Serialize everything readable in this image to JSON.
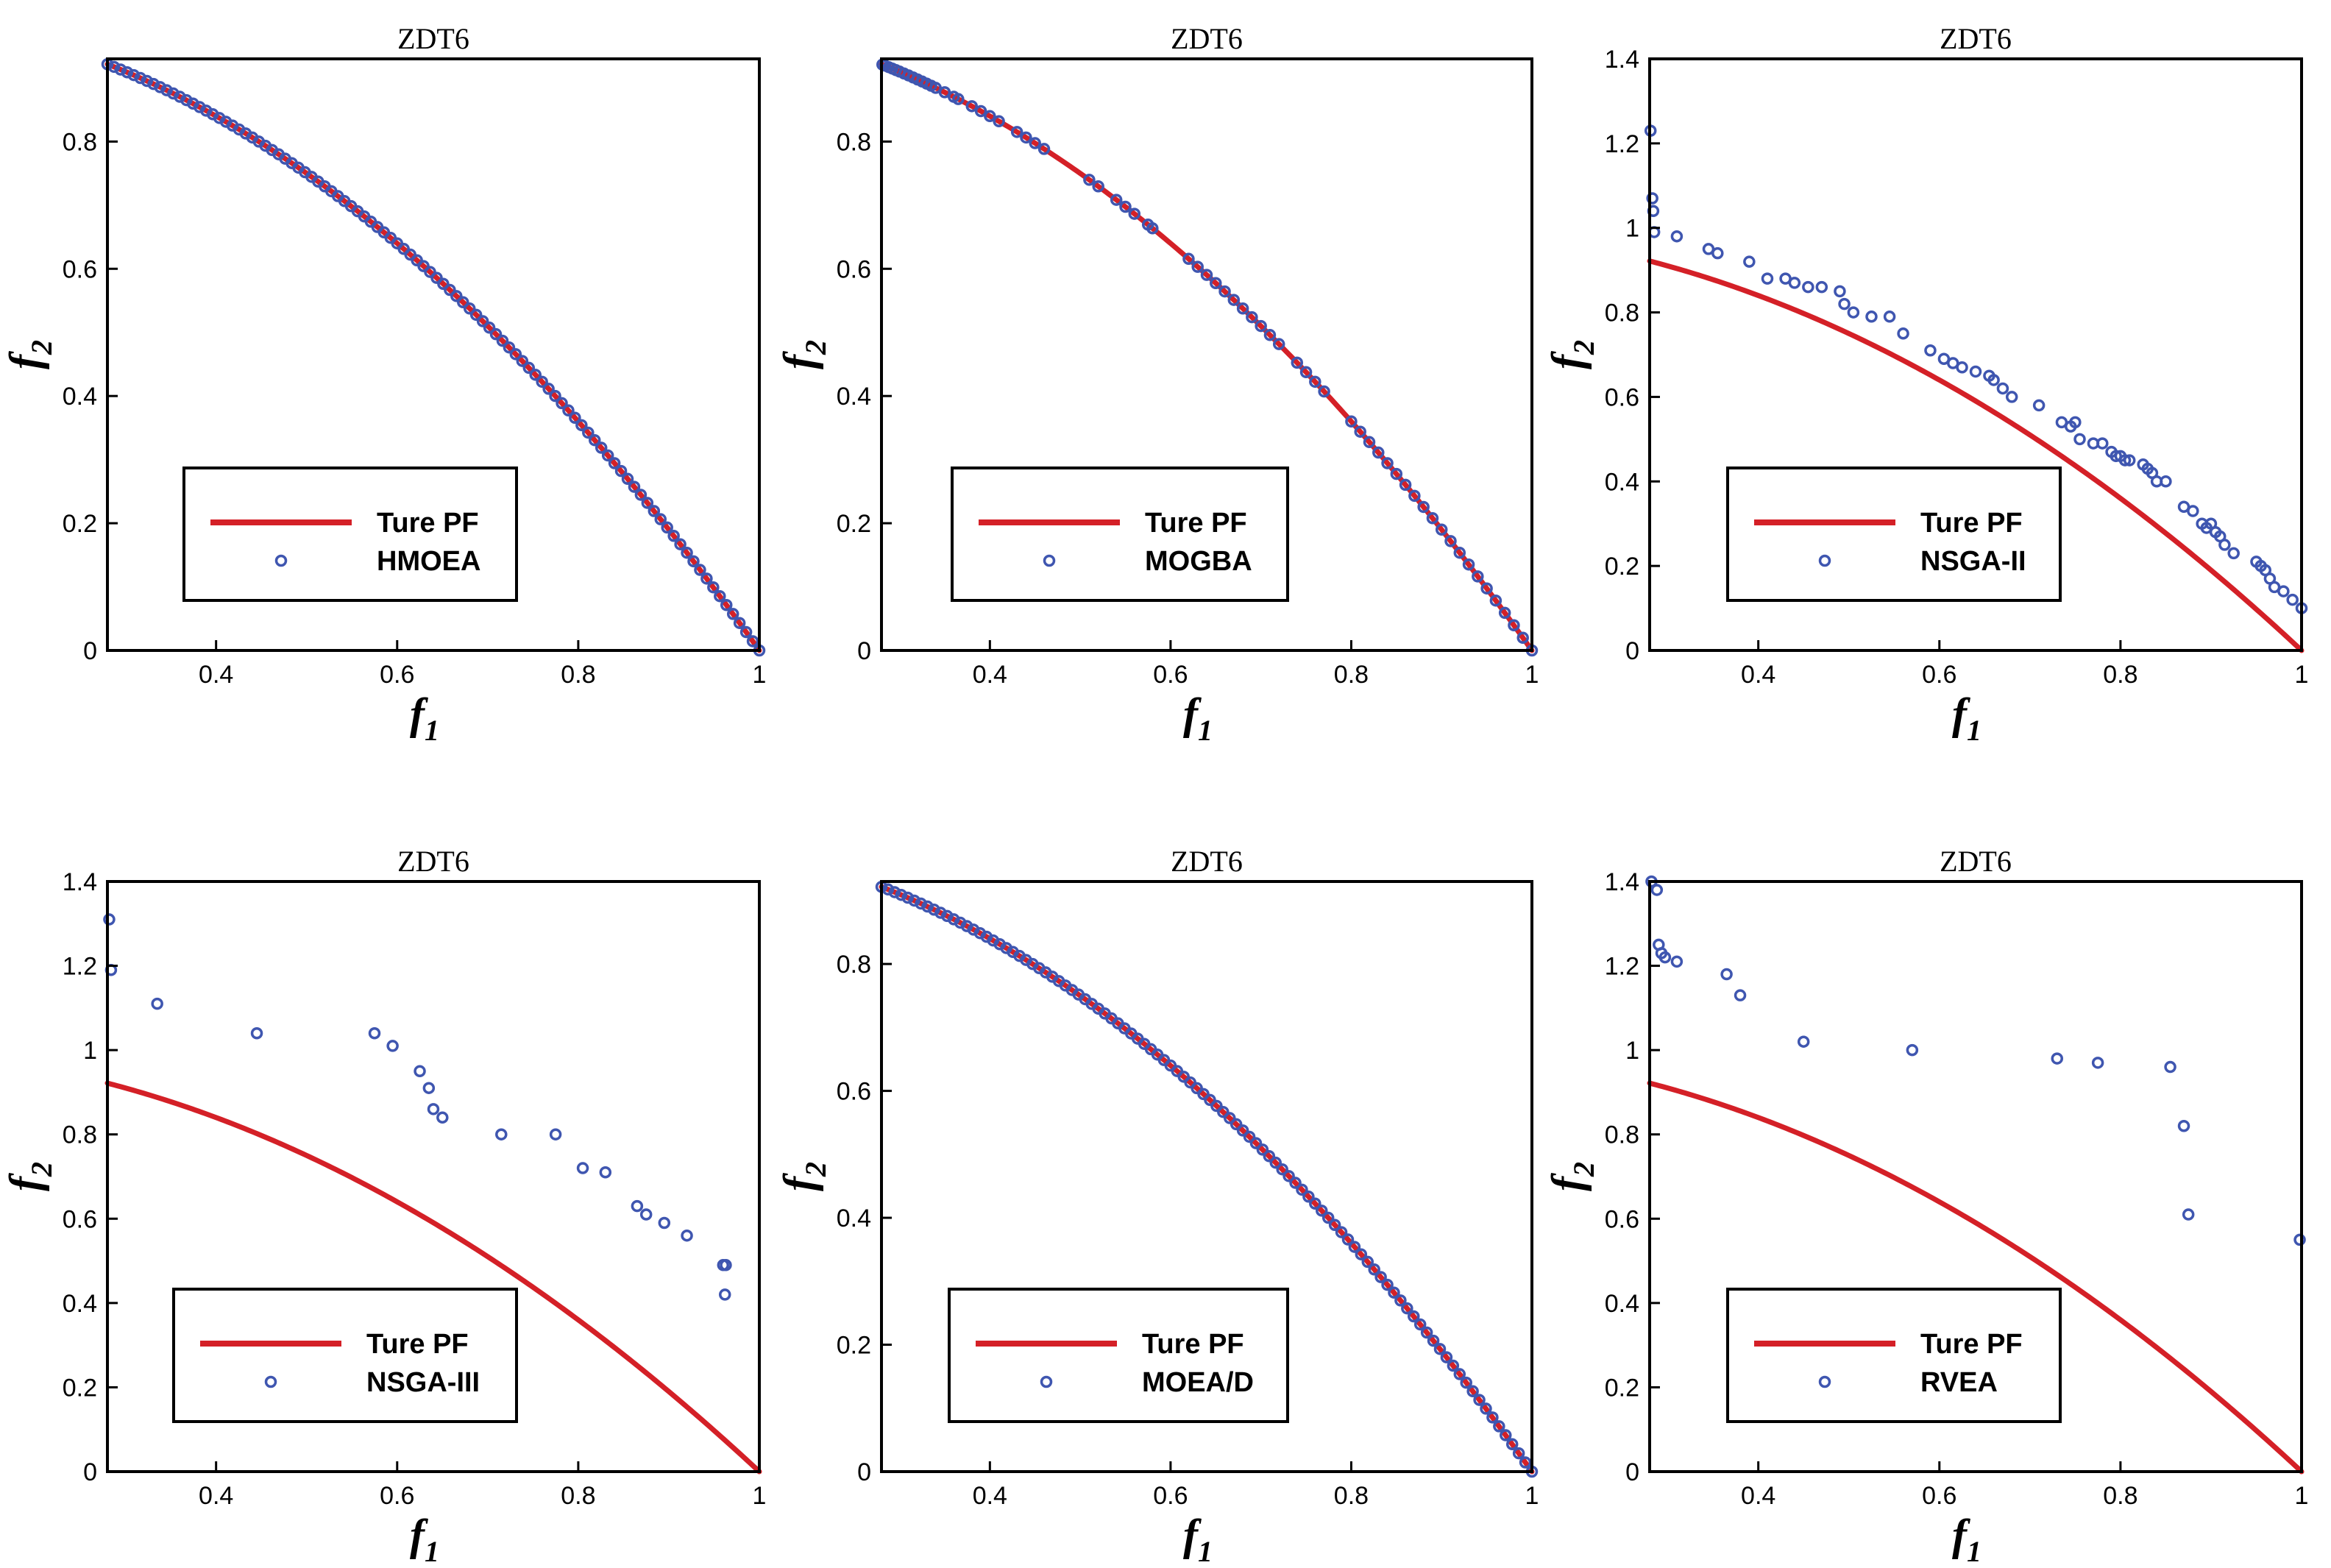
{
  "colors": {
    "true_pf": "#d42027",
    "points": "#3f56b0",
    "frame": "#000000"
  },
  "chart_data": [
    {
      "type": "line+scatter",
      "title": "ZDT6",
      "xlabel": "f",
      "xlabel_sub": "1",
      "ylabel": "f",
      "ylabel_sub": "2",
      "xlim": [
        0.28,
        1.0
      ],
      "ylim": [
        0,
        0.93
      ],
      "xticks": [
        0.4,
        0.6,
        0.8,
        1
      ],
      "xtick_labels": [
        "0.4",
        "0.6",
        "0.8",
        "1"
      ],
      "yticks": [
        0,
        0.2,
        0.4,
        0.6,
        0.8
      ],
      "ytick_labels": [
        "0",
        "0.2",
        "0.4",
        "0.6",
        "0.8"
      ],
      "legend": {
        "line_label": "Ture PF",
        "points_label": "HMOEA"
      },
      "points_on_pf": {
        "count": 100,
        "f1_min": 0.28,
        "f1_max": 1.0
      },
      "points": []
    },
    {
      "type": "line+scatter",
      "title": "ZDT6",
      "xlabel": "f",
      "xlabel_sub": "1",
      "ylabel": "f",
      "ylabel_sub": "2",
      "xlim": [
        0.28,
        1.0
      ],
      "ylim": [
        0,
        0.93
      ],
      "xticks": [
        0.4,
        0.6,
        0.8,
        1
      ],
      "xtick_labels": [
        "0.4",
        "0.6",
        "0.8",
        "1"
      ],
      "yticks": [
        0,
        0.2,
        0.4,
        0.6,
        0.8
      ],
      "ytick_labels": [
        "0",
        "0.2",
        "0.4",
        "0.6",
        "0.8"
      ],
      "legend": {
        "line_label": "Ture PF",
        "points_label": "MOGBA"
      },
      "points_on_pf_list": [
        0.281,
        0.284,
        0.288,
        0.292,
        0.296,
        0.3,
        0.305,
        0.31,
        0.315,
        0.32,
        0.325,
        0.33,
        0.335,
        0.34,
        0.35,
        0.36,
        0.365,
        0.38,
        0.39,
        0.4,
        0.41,
        0.43,
        0.44,
        0.45,
        0.46,
        0.51,
        0.52,
        0.54,
        0.55,
        0.56,
        0.575,
        0.58,
        0.62,
        0.63,
        0.64,
        0.65,
        0.66,
        0.67,
        0.68,
        0.69,
        0.7,
        0.71,
        0.72,
        0.74,
        0.75,
        0.76,
        0.77,
        0.8,
        0.81,
        0.82,
        0.83,
        0.84,
        0.85,
        0.86,
        0.87,
        0.88,
        0.89,
        0.9,
        0.91,
        0.92,
        0.93,
        0.94,
        0.95,
        0.96,
        0.97,
        0.98,
        0.99,
        1.0
      ],
      "points": []
    },
    {
      "type": "line+scatter",
      "title": "ZDT6",
      "xlabel": "f",
      "xlabel_sub": "1",
      "ylabel": "f",
      "ylabel_sub": "2",
      "xlim": [
        0.28,
        1.0
      ],
      "ylim": [
        0,
        1.4
      ],
      "xticks": [
        0.4,
        0.6,
        0.8,
        1
      ],
      "xtick_labels": [
        "0.4",
        "0.6",
        "0.8",
        "1"
      ],
      "yticks": [
        0,
        0.2,
        0.4,
        0.6,
        0.8,
        1,
        1.2,
        1.4
      ],
      "ytick_labels": [
        "0",
        "0.2",
        "0.4",
        "0.6",
        "0.8",
        "1",
        "1.2",
        "1.4"
      ],
      "legend": {
        "line_label": "Ture PF",
        "points_label": "NSGA-II"
      },
      "points": [
        [
          0.281,
          1.23
        ],
        [
          0.283,
          1.07
        ],
        [
          0.284,
          1.04
        ],
        [
          0.285,
          0.99
        ],
        [
          0.31,
          0.98
        ],
        [
          0.345,
          0.95
        ],
        [
          0.355,
          0.94
        ],
        [
          0.39,
          0.92
        ],
        [
          0.41,
          0.88
        ],
        [
          0.43,
          0.88
        ],
        [
          0.44,
          0.87
        ],
        [
          0.455,
          0.86
        ],
        [
          0.47,
          0.86
        ],
        [
          0.49,
          0.85
        ],
        [
          0.495,
          0.82
        ],
        [
          0.505,
          0.8
        ],
        [
          0.525,
          0.79
        ],
        [
          0.545,
          0.79
        ],
        [
          0.56,
          0.75
        ],
        [
          0.59,
          0.71
        ],
        [
          0.605,
          0.69
        ],
        [
          0.615,
          0.68
        ],
        [
          0.625,
          0.67
        ],
        [
          0.64,
          0.66
        ],
        [
          0.655,
          0.65
        ],
        [
          0.66,
          0.64
        ],
        [
          0.67,
          0.62
        ],
        [
          0.68,
          0.6
        ],
        [
          0.71,
          0.58
        ],
        [
          0.735,
          0.54
        ],
        [
          0.745,
          0.53
        ],
        [
          0.75,
          0.54
        ],
        [
          0.755,
          0.5
        ],
        [
          0.77,
          0.49
        ],
        [
          0.78,
          0.49
        ],
        [
          0.79,
          0.47
        ],
        [
          0.795,
          0.46
        ],
        [
          0.8,
          0.46
        ],
        [
          0.805,
          0.45
        ],
        [
          0.81,
          0.45
        ],
        [
          0.825,
          0.44
        ],
        [
          0.83,
          0.43
        ],
        [
          0.835,
          0.42
        ],
        [
          0.84,
          0.4
        ],
        [
          0.85,
          0.4
        ],
        [
          0.87,
          0.34
        ],
        [
          0.88,
          0.33
        ],
        [
          0.89,
          0.3
        ],
        [
          0.895,
          0.29
        ],
        [
          0.9,
          0.3
        ],
        [
          0.905,
          0.28
        ],
        [
          0.91,
          0.27
        ],
        [
          0.915,
          0.25
        ],
        [
          0.925,
          0.23
        ],
        [
          0.95,
          0.21
        ],
        [
          0.955,
          0.2
        ],
        [
          0.96,
          0.19
        ],
        [
          0.965,
          0.17
        ],
        [
          0.97,
          0.15
        ],
        [
          0.98,
          0.14
        ],
        [
          0.99,
          0.12
        ],
        [
          1.0,
          0.1
        ]
      ]
    },
    {
      "type": "line+scatter",
      "title": "ZDT6",
      "xlabel": "f",
      "xlabel_sub": "1",
      "ylabel": "f",
      "ylabel_sub": "2",
      "xlim": [
        0.28,
        1.0
      ],
      "ylim": [
        0,
        1.4
      ],
      "xticks": [
        0.4,
        0.6,
        0.8,
        1
      ],
      "xtick_labels": [
        "0.4",
        "0.6",
        "0.8",
        "1"
      ],
      "yticks": [
        0,
        0.2,
        0.4,
        0.6,
        0.8,
        1,
        1.2,
        1.4
      ],
      "ytick_labels": [
        "0",
        "0.2",
        "0.4",
        "0.6",
        "0.8",
        "1",
        "1.2",
        "1.4"
      ],
      "legend": {
        "line_label": "Ture PF",
        "points_label": "NSGA-III"
      },
      "points": [
        [
          0.282,
          1.31
        ],
        [
          0.284,
          1.19
        ],
        [
          0.335,
          1.11
        ],
        [
          0.445,
          1.04
        ],
        [
          0.575,
          1.04
        ],
        [
          0.595,
          1.01
        ],
        [
          0.625,
          0.95
        ],
        [
          0.635,
          0.91
        ],
        [
          0.64,
          0.86
        ],
        [
          0.65,
          0.84
        ],
        [
          0.715,
          0.8
        ],
        [
          0.775,
          0.8
        ],
        [
          0.805,
          0.72
        ],
        [
          0.83,
          0.71
        ],
        [
          0.865,
          0.63
        ],
        [
          0.875,
          0.61
        ],
        [
          0.895,
          0.59
        ],
        [
          0.92,
          0.56
        ],
        [
          0.96,
          0.49
        ],
        [
          0.963,
          0.49
        ],
        [
          0.962,
          0.42
        ]
      ]
    },
    {
      "type": "line+scatter",
      "title": "ZDT6",
      "xlabel": "f",
      "xlabel_sub": "1",
      "ylabel": "f",
      "ylabel_sub": "2",
      "xlim": [
        0.28,
        1.0
      ],
      "ylim": [
        0,
        0.93
      ],
      "xticks": [
        0.4,
        0.6,
        0.8,
        1
      ],
      "xtick_labels": [
        "0.4",
        "0.6",
        "0.8",
        "1"
      ],
      "yticks": [
        0,
        0.2,
        0.4,
        0.6,
        0.8
      ],
      "ytick_labels": [
        "0",
        "0.2",
        "0.4",
        "0.6",
        "0.8"
      ],
      "legend": {
        "line_label": "Ture PF",
        "points_label": "MOEA/D"
      },
      "points_on_pf": {
        "count": 100,
        "f1_min": 0.28,
        "f1_max": 1.0
      },
      "points": []
    },
    {
      "type": "line+scatter",
      "title": "ZDT6",
      "xlabel": "f",
      "xlabel_sub": "1",
      "ylabel": "f",
      "ylabel_sub": "2",
      "xlim": [
        0.28,
        1.0
      ],
      "ylim": [
        0,
        1.4
      ],
      "xticks": [
        0.4,
        0.6,
        0.8,
        1
      ],
      "xtick_labels": [
        "0.4",
        "0.6",
        "0.8",
        "1"
      ],
      "yticks": [
        0,
        0.2,
        0.4,
        0.6,
        0.8,
        1,
        1.2,
        1.4
      ],
      "ytick_labels": [
        "0",
        "0.2",
        "0.4",
        "0.6",
        "0.8",
        "1",
        "1.2",
        "1.4"
      ],
      "legend": {
        "line_label": "Ture PF",
        "points_label": "RVEA"
      },
      "points": [
        [
          0.282,
          1.4
        ],
        [
          0.288,
          1.38
        ],
        [
          0.29,
          1.25
        ],
        [
          0.293,
          1.23
        ],
        [
          0.297,
          1.22
        ],
        [
          0.31,
          1.21
        ],
        [
          0.365,
          1.18
        ],
        [
          0.38,
          1.13
        ],
        [
          0.45,
          1.02
        ],
        [
          0.57,
          1.0
        ],
        [
          0.73,
          0.98
        ],
        [
          0.775,
          0.97
        ],
        [
          0.855,
          0.96
        ],
        [
          0.87,
          0.82
        ],
        [
          0.875,
          0.61
        ],
        [
          0.998,
          0.55
        ]
      ]
    }
  ]
}
